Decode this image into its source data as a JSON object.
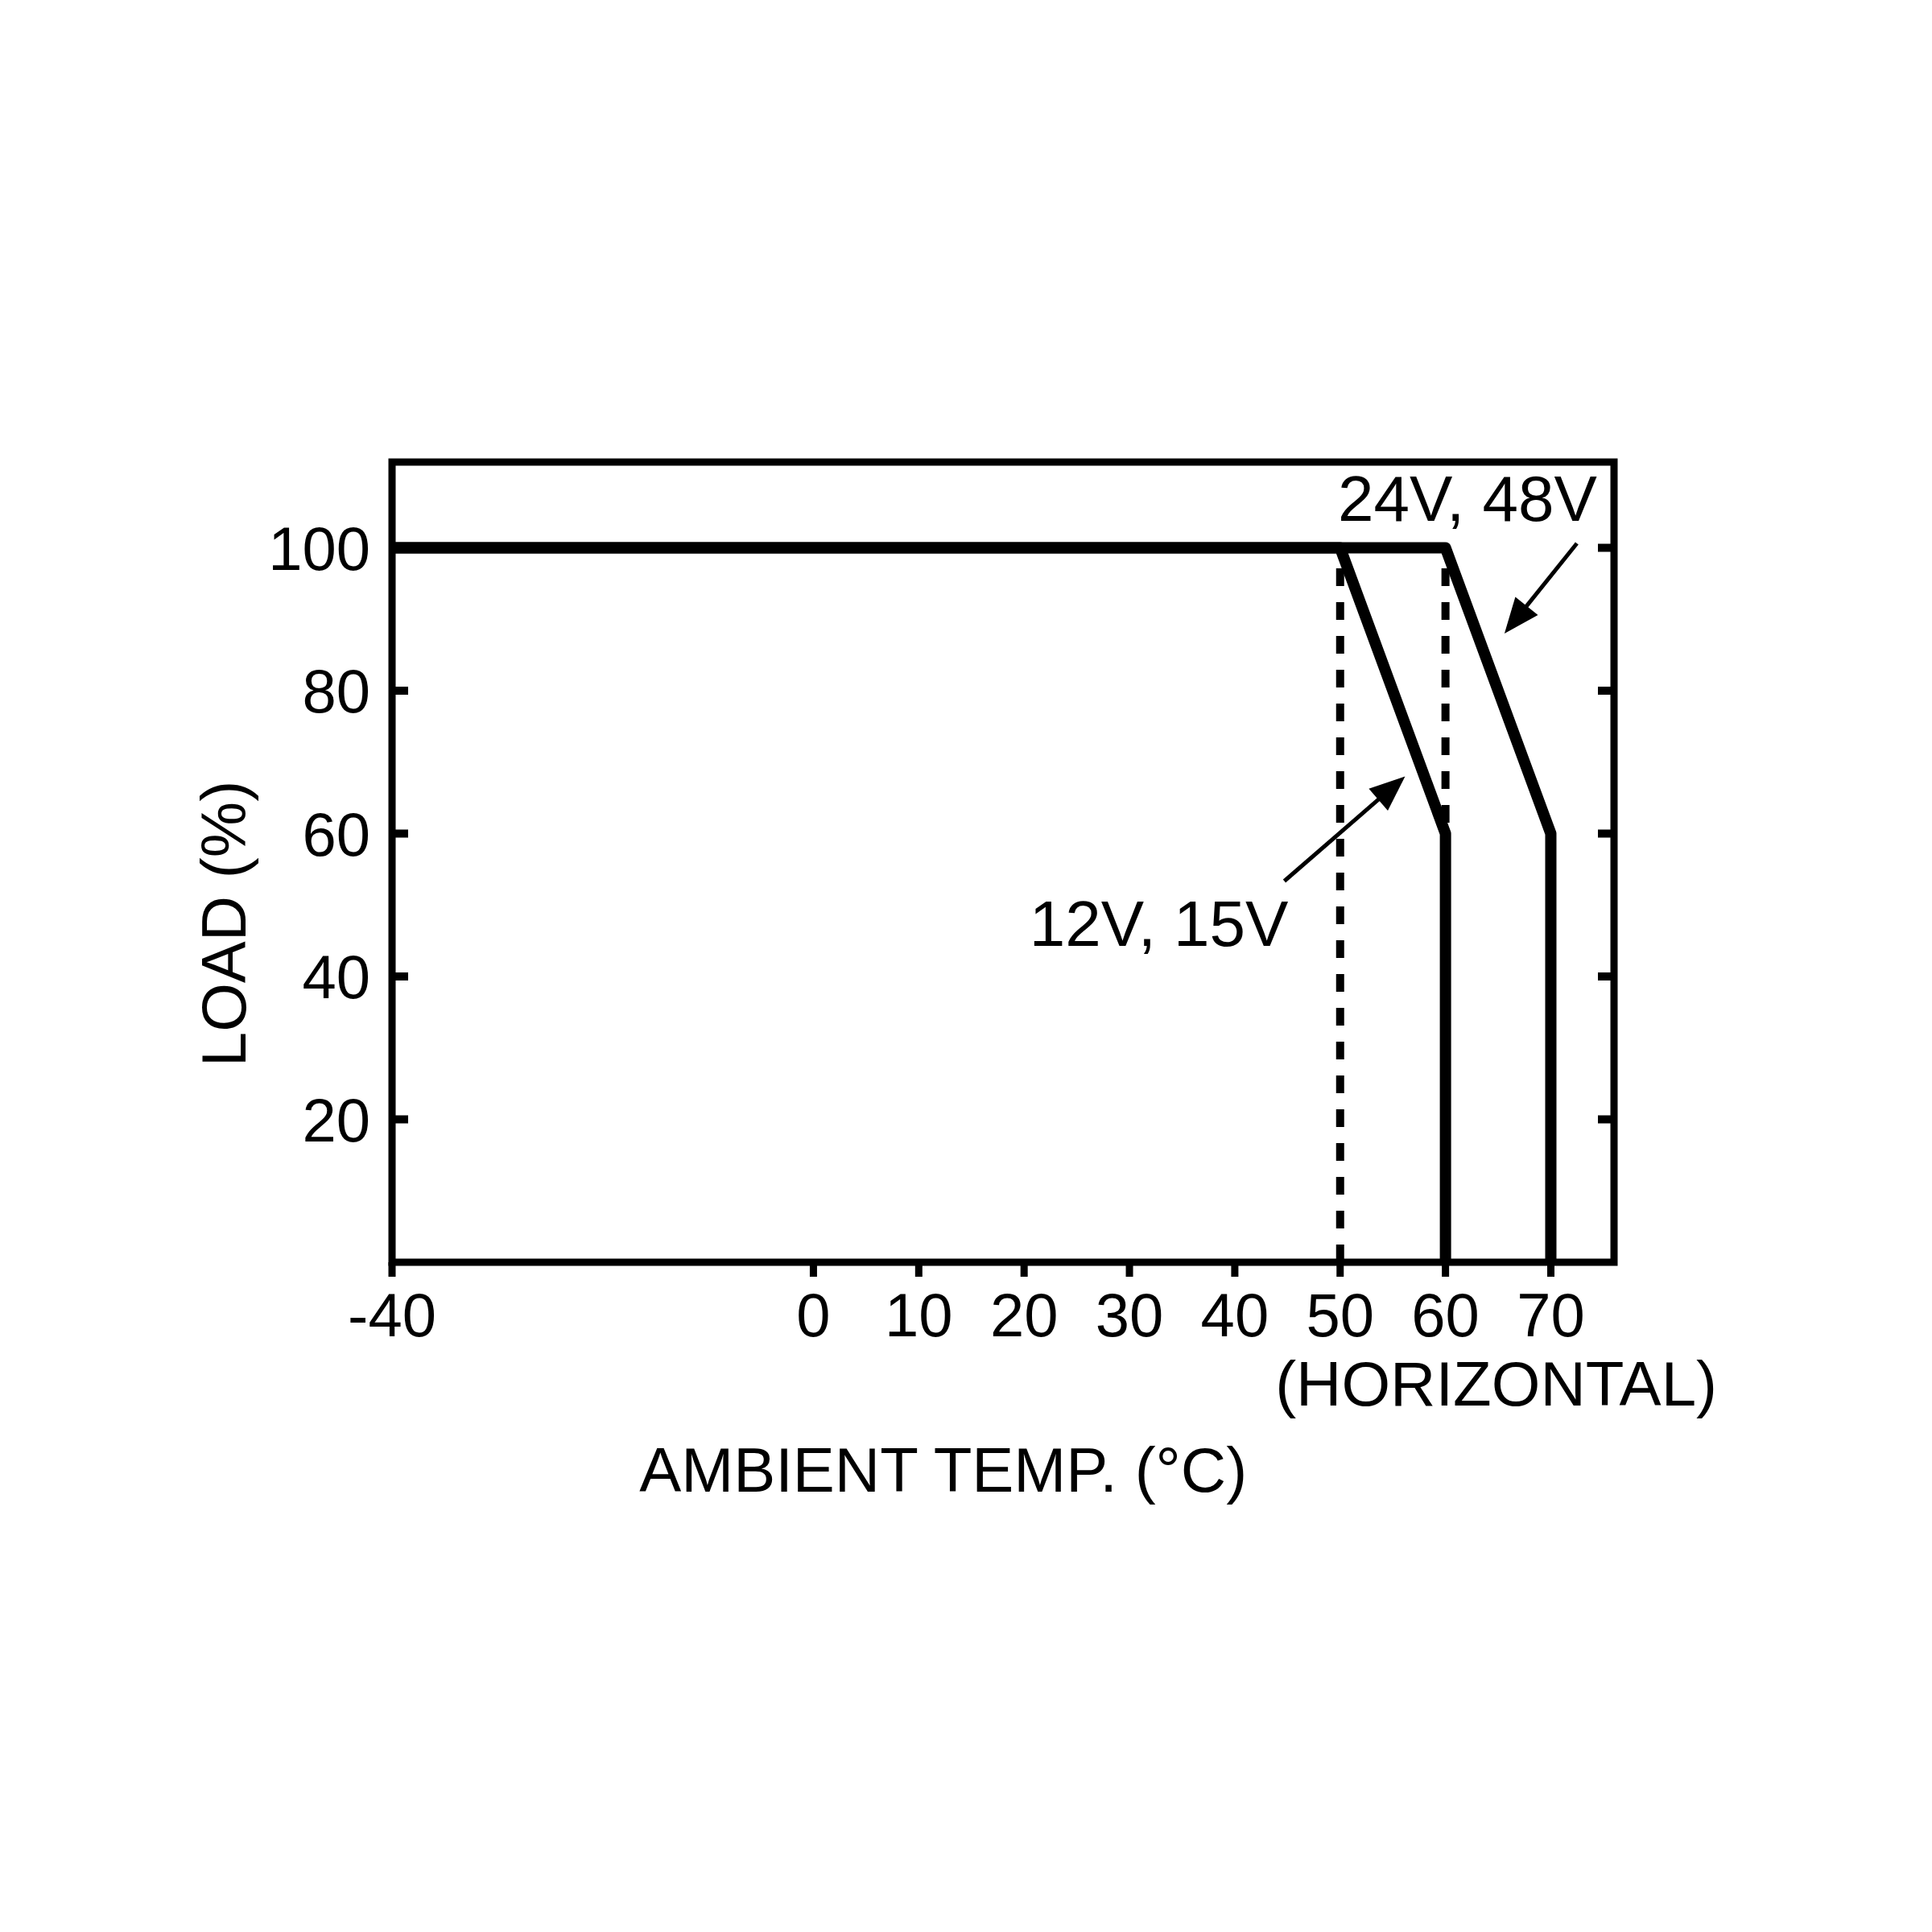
{
  "chart_data": {
    "type": "line",
    "xlabel": "AMBIENT TEMP. (°C)",
    "ylabel": "LOAD (%)",
    "annotations": [
      "(HORIZONTAL)"
    ],
    "series": [
      {
        "name": "12V, 15V",
        "x": [
          -40,
          50,
          60,
          60
        ],
        "values": [
          100,
          100,
          60,
          0
        ],
        "color": "#000000"
      },
      {
        "name": "24V, 48V",
        "x": [
          -40,
          60,
          70,
          70
        ],
        "values": [
          100,
          100,
          60,
          0
        ],
        "color": "#000000"
      }
    ],
    "ref_lines": [
      {
        "axis": "x",
        "value": 50,
        "color": "#000000",
        "line_style": "dashed"
      },
      {
        "axis": "x",
        "value": 60,
        "color": "#000000",
        "line_style": "dashed"
      }
    ],
    "xlim": [
      -40,
      76
    ],
    "ylim": [
      0,
      112
    ],
    "xticks": [
      -40,
      0,
      10,
      20,
      30,
      40,
      50,
      60,
      70
    ],
    "yticks": [
      20,
      40,
      60,
      80,
      100
    ],
    "line_style": "solid"
  }
}
